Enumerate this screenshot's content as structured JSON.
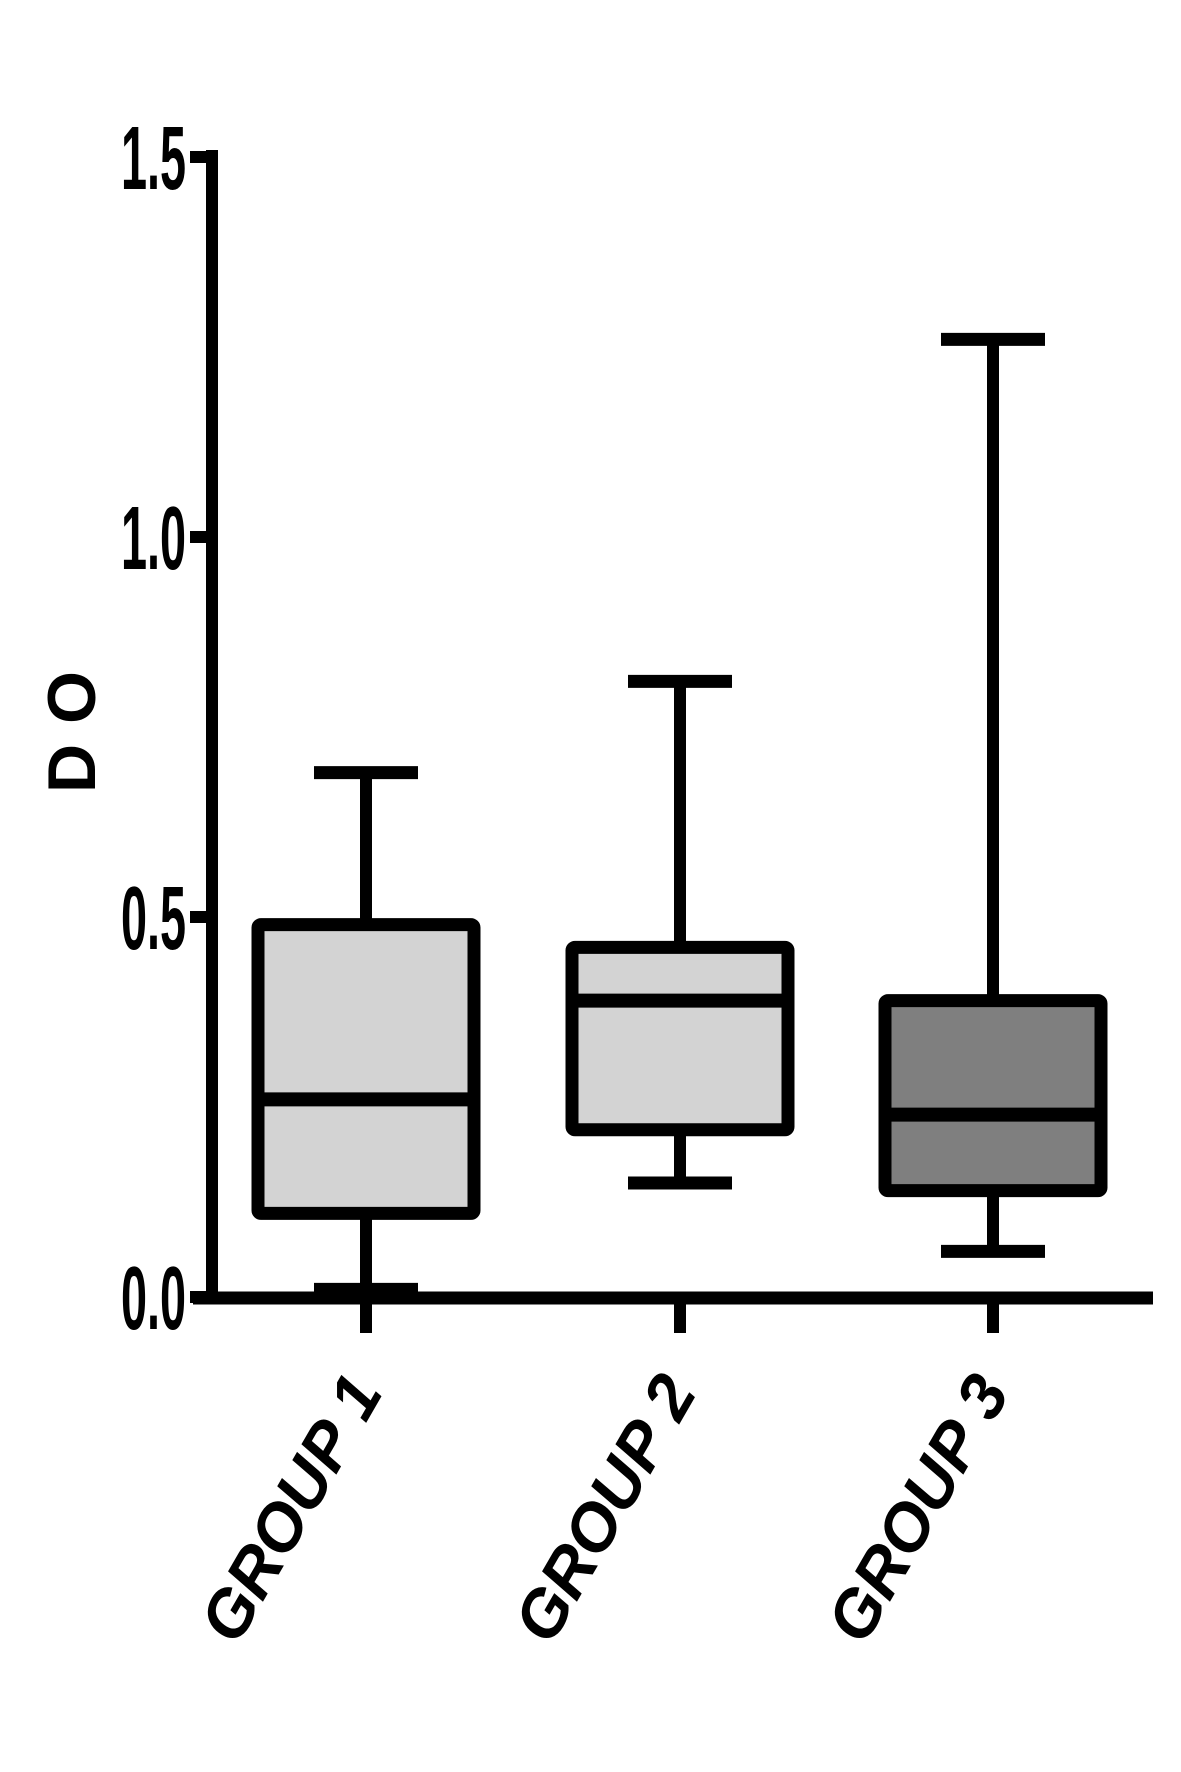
{
  "figure": {
    "kind": "box-and-whisker plot",
    "background": "#ffffff"
  },
  "chart_data": {
    "type": "box",
    "title": "",
    "xlabel": "",
    "ylabel": "DO",
    "ylim": [
      0,
      1.5
    ],
    "yticks": [
      0,
      0.5,
      1.0,
      1.5
    ],
    "ytick_labels": [
      "0.0",
      "0.5",
      "1.0",
      "1.5"
    ],
    "grid": false,
    "legend": "none",
    "categories": [
      "GROUP 1",
      "GROUP 2",
      "GROUP 3"
    ],
    "series": [
      {
        "name": "GROUP 1",
        "min": 0.01,
        "q1": 0.11,
        "median": 0.26,
        "q3": 0.49,
        "max": 0.69,
        "fill": "#d3d3d3"
      },
      {
        "name": "GROUP 2",
        "min": 0.15,
        "q1": 0.22,
        "median": 0.39,
        "q3": 0.46,
        "max": 0.81,
        "fill": "#d3d3d3"
      },
      {
        "name": "GROUP 3",
        "min": 0.06,
        "q1": 0.14,
        "median": 0.24,
        "q3": 0.39,
        "max": 1.26,
        "fill": "#7f7f7f"
      }
    ],
    "colors": {
      "box_fill_light": "#d3d3d3",
      "box_fill_dark": "#7f7f7f",
      "line": "#000000",
      "background": "#ffffff"
    }
  }
}
